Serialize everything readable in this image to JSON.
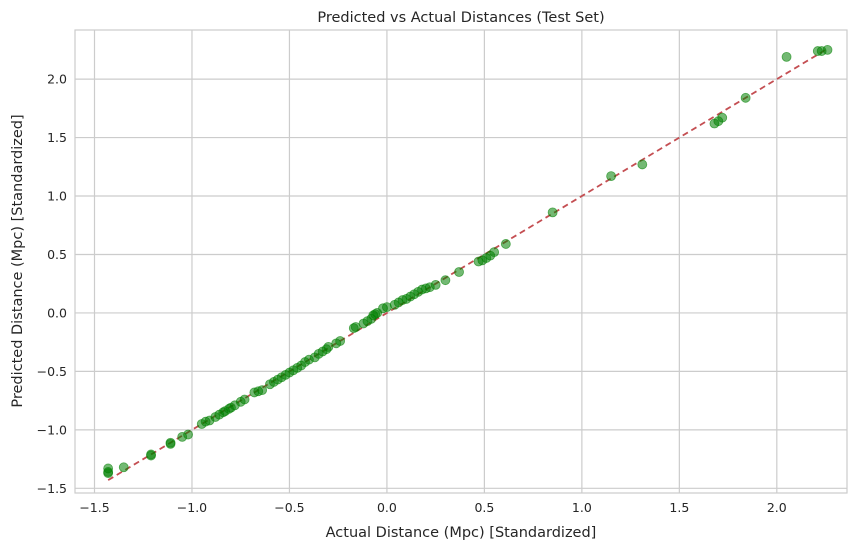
{
  "chart_data": {
    "type": "scatter",
    "title": "Predicted vs Actual Distances (Test Set)",
    "xlabel": "Actual Distance (Mpc) [Standardized]",
    "ylabel": "Predicted Distance (Mpc) [Standardized]",
    "xlim": [
      -1.6,
      2.36
    ],
    "ylim": [
      -1.54,
      2.42
    ],
    "xticks": [
      -1.5,
      -1.0,
      -0.5,
      0.0,
      0.5,
      1.0,
      1.5,
      2.0
    ],
    "xtick_labels": [
      "−1.5",
      "−1.0",
      "−0.5",
      "0.0",
      "0.5",
      "1.0",
      "1.5",
      "2.0"
    ],
    "yticks": [
      -1.5,
      -1.0,
      -0.5,
      0.0,
      0.5,
      1.0,
      1.5,
      2.0
    ],
    "ytick_labels": [
      "−1.5",
      "−1.0",
      "−0.5",
      "0.0",
      "0.5",
      "1.0",
      "1.5",
      "2.0"
    ],
    "grid": true,
    "marker_color": "#008000",
    "line_color": "#c44e52",
    "reference_line": {
      "style": "dashed",
      "x": [
        -1.43,
        2.25
      ],
      "y": [
        -1.43,
        2.25
      ]
    },
    "points": [
      [
        -1.43,
        -1.33
      ],
      [
        -1.43,
        -1.36
      ],
      [
        -1.43,
        -1.37
      ],
      [
        -1.35,
        -1.32
      ],
      [
        -1.21,
        -1.21
      ],
      [
        -1.21,
        -1.22
      ],
      [
        -1.11,
        -1.11
      ],
      [
        -1.11,
        -1.12
      ],
      [
        -1.05,
        -1.06
      ],
      [
        -1.02,
        -1.04
      ],
      [
        -0.95,
        -0.95
      ],
      [
        -0.93,
        -0.93
      ],
      [
        -0.91,
        -0.92
      ],
      [
        -0.88,
        -0.89
      ],
      [
        -0.86,
        -0.87
      ],
      [
        -0.84,
        -0.85
      ],
      [
        -0.83,
        -0.84
      ],
      [
        -0.81,
        -0.82
      ],
      [
        -0.8,
        -0.81
      ],
      [
        -0.78,
        -0.79
      ],
      [
        -0.75,
        -0.76
      ],
      [
        -0.73,
        -0.74
      ],
      [
        -0.68,
        -0.68
      ],
      [
        -0.66,
        -0.67
      ],
      [
        -0.64,
        -0.66
      ],
      [
        -0.6,
        -0.61
      ],
      [
        -0.58,
        -0.59
      ],
      [
        -0.56,
        -0.57
      ],
      [
        -0.54,
        -0.55
      ],
      [
        -0.52,
        -0.53
      ],
      [
        -0.5,
        -0.51
      ],
      [
        -0.48,
        -0.49
      ],
      [
        -0.46,
        -0.47
      ],
      [
        -0.44,
        -0.45
      ],
      [
        -0.42,
        -0.42
      ],
      [
        -0.4,
        -0.4
      ],
      [
        -0.37,
        -0.38
      ],
      [
        -0.35,
        -0.35
      ],
      [
        -0.33,
        -0.33
      ],
      [
        -0.31,
        -0.31
      ],
      [
        -0.3,
        -0.29
      ],
      [
        -0.26,
        -0.26
      ],
      [
        -0.24,
        -0.24
      ],
      [
        -0.17,
        -0.13
      ],
      [
        -0.16,
        -0.12
      ],
      [
        -0.12,
        -0.09
      ],
      [
        -0.1,
        -0.07
      ],
      [
        -0.08,
        -0.05
      ],
      [
        -0.07,
        -0.02
      ],
      [
        -0.06,
        -0.01
      ],
      [
        -0.05,
        0.0
      ],
      [
        -0.02,
        0.04
      ],
      [
        0.0,
        0.05
      ],
      [
        0.04,
        0.07
      ],
      [
        0.06,
        0.09
      ],
      [
        0.08,
        0.11
      ],
      [
        0.1,
        0.12
      ],
      [
        0.12,
        0.14
      ],
      [
        0.14,
        0.16
      ],
      [
        0.16,
        0.18
      ],
      [
        0.18,
        0.2
      ],
      [
        0.2,
        0.21
      ],
      [
        0.22,
        0.22
      ],
      [
        0.25,
        0.24
      ],
      [
        0.3,
        0.28
      ],
      [
        0.37,
        0.35
      ],
      [
        0.47,
        0.44
      ],
      [
        0.49,
        0.45
      ],
      [
        0.51,
        0.47
      ],
      [
        0.53,
        0.49
      ],
      [
        0.55,
        0.52
      ],
      [
        0.61,
        0.59
      ],
      [
        0.85,
        0.86
      ],
      [
        1.15,
        1.17
      ],
      [
        1.31,
        1.27
      ],
      [
        1.68,
        1.62
      ],
      [
        1.7,
        1.64
      ],
      [
        1.72,
        1.67
      ],
      [
        1.84,
        1.84
      ],
      [
        2.05,
        2.19
      ],
      [
        2.21,
        2.24
      ],
      [
        2.23,
        2.24
      ],
      [
        2.26,
        2.25
      ]
    ]
  }
}
